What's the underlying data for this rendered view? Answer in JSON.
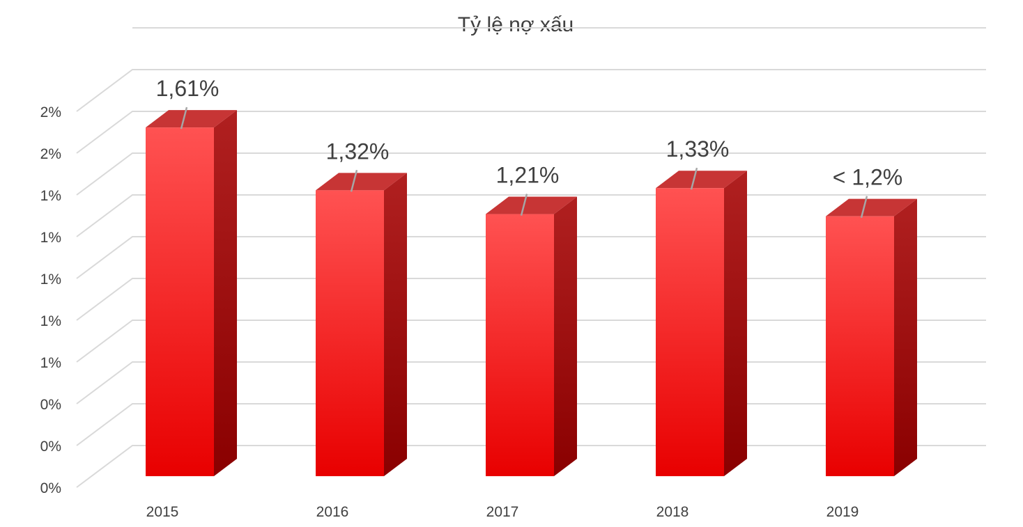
{
  "chart_data": {
    "type": "bar",
    "style": "3d-column",
    "title": "Tỷ lệ nợ xấu",
    "categories": [
      "2015",
      "2016",
      "2017",
      "2018",
      "2019"
    ],
    "values": [
      1.61,
      1.32,
      1.21,
      1.33,
      1.2
    ],
    "data_labels": [
      "1,61%",
      "1,32%",
      "1,21%",
      "1,33%",
      "< 1,2%"
    ],
    "y_tick_labels": [
      "0%",
      "0%",
      "0%",
      "1%",
      "1%",
      "1%",
      "1%",
      "1%",
      "2%",
      "2%"
    ],
    "ylim": [
      0,
      1.8
    ],
    "grid": true,
    "legend": "none",
    "colors": {
      "bar_front_top": "#ff5252",
      "bar_front_bottom": "#e80000",
      "bar_side_top": "#b02020",
      "bar_side_bottom": "#8a0000",
      "bar_top": "#c73535",
      "grid": "#d9d9d9",
      "text": "#404040"
    }
  }
}
